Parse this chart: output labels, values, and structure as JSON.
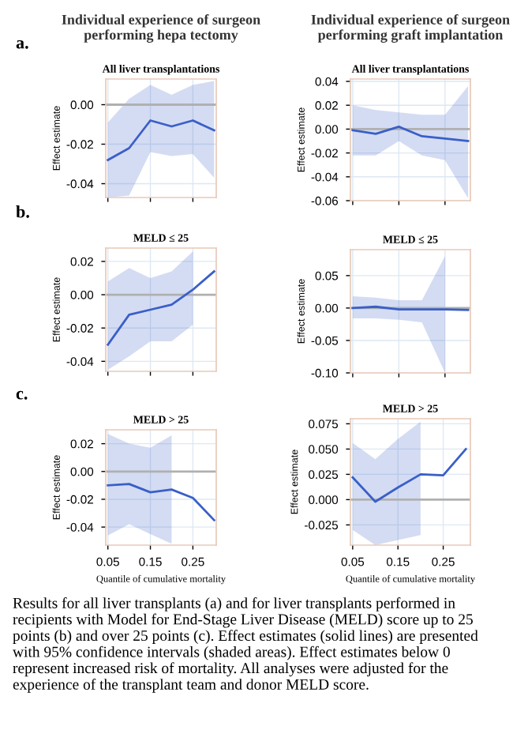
{
  "chart_data": [
    {
      "type": "line",
      "title": "All liver transplantations",
      "ylabel": "Effect estimate",
      "annotations": [
        "Individual experience of surgeon performing hepa tectomy",
        "a."
      ],
      "x": [
        0.05,
        0.1,
        0.15,
        0.2,
        0.25,
        0.3
      ],
      "xlim": [
        0.045,
        0.305
      ],
      "xticks": [
        0.05,
        0.15,
        0.25
      ],
      "ylim": [
        -0.047,
        0.013
      ],
      "yticks": [
        {
          "value": 0,
          "label": "0.00"
        },
        {
          "value": -0.02,
          "label": "-0.02"
        },
        {
          "value": -0.04,
          "label": "-0.04"
        }
      ],
      "tick_labels": "y",
      "grid": true,
      "ref_lines": [
        {
          "axis": "y",
          "value": 0,
          "color": "#b0b0b0"
        }
      ],
      "series": [
        {
          "color": "#3a5fc8",
          "values": [
            -0.028,
            -0.022,
            -0.008,
            -0.011,
            -0.008,
            -0.013
          ],
          "lower": [
            -0.047,
            -0.046,
            -0.024,
            -0.026,
            -0.025,
            -0.037
          ],
          "upper": [
            -0.009,
            0.003,
            0.01,
            0.005,
            0.01,
            0.012
          ]
        }
      ]
    },
    {
      "type": "line",
      "title": "All liver transplantations",
      "ylabel": "Effect estimate",
      "annotations": [
        "Individual experience of surgeon performing graft implantation"
      ],
      "x": [
        0.05,
        0.1,
        0.15,
        0.2,
        0.25,
        0.3
      ],
      "xlim": [
        0.045,
        0.305
      ],
      "xticks": [
        0.05,
        0.15,
        0.25
      ],
      "ylim": [
        -0.06,
        0.042
      ],
      "yticks": [
        {
          "value": 0.04,
          "label": "0.04"
        },
        {
          "value": 0.02,
          "label": "0.02"
        },
        {
          "value": 0,
          "label": "0.00"
        },
        {
          "value": -0.02,
          "label": "-0.02"
        },
        {
          "value": -0.04,
          "label": "-0.04"
        },
        {
          "value": -0.06,
          "label": "-0.06"
        }
      ],
      "tick_labels": "y",
      "grid": true,
      "ref_lines": [
        {
          "axis": "y",
          "value": 0,
          "color": "#b0b0b0"
        }
      ],
      "series": [
        {
          "color": "#3a5fc8",
          "values": [
            -0.001,
            -0.004,
            0.002,
            -0.006,
            -0.008,
            -0.01
          ],
          "lower": [
            -0.022,
            -0.022,
            -0.01,
            -0.022,
            -0.026,
            -0.058
          ],
          "upper": [
            0.02,
            0.016,
            0.014,
            0.012,
            0.012,
            0.036
          ]
        }
      ]
    },
    {
      "type": "line",
      "title": "MELD ≤ 25",
      "ylabel": "Effect estimate",
      "annotations": [
        "b."
      ],
      "x": [
        0.05,
        0.1,
        0.15,
        0.2,
        0.25,
        0.3
      ],
      "xlim": [
        0.045,
        0.305
      ],
      "xticks": [
        0.05,
        0.15,
        0.25
      ],
      "ylim": [
        -0.046,
        0.028
      ],
      "yticks": [
        {
          "value": 0.02,
          "label": "0.02"
        },
        {
          "value": 0,
          "label": "0.00"
        },
        {
          "value": -0.02,
          "label": "-0.02"
        },
        {
          "value": -0.04,
          "label": "-0.04"
        }
      ],
      "tick_labels": "y",
      "grid": true,
      "ref_lines": [
        {
          "axis": "y",
          "value": 0,
          "color": "#b0b0b0"
        }
      ],
      "series": [
        {
          "color": "#3a5fc8",
          "values": [
            -0.03,
            -0.012,
            -0.009,
            -0.006,
            0.003,
            0.014
          ],
          "lower": [
            -0.045,
            -0.037,
            -0.028,
            -0.028,
            -0.018,
            null
          ],
          "upper": [
            0.008,
            0.016,
            0.01,
            0.014,
            0.026,
            null
          ]
        }
      ]
    },
    {
      "type": "line",
      "title": "MELD ≤ 25",
      "ylabel": "Effect estimate",
      "x": [
        0.05,
        0.1,
        0.15,
        0.2,
        0.25,
        0.3
      ],
      "xlim": [
        0.045,
        0.305
      ],
      "xticks": [
        0.05,
        0.15,
        0.25
      ],
      "ylim": [
        -0.1,
        0.09
      ],
      "yticks": [
        {
          "value": 0.05,
          "label": "0.05"
        },
        {
          "value": 0,
          "label": "0.00"
        },
        {
          "value": -0.05,
          "label": "-0.05"
        },
        {
          "value": -0.1,
          "label": "-0.10"
        }
      ],
      "tick_labels": "y",
      "grid": true,
      "ref_lines": [
        {
          "axis": "y",
          "value": 0,
          "color": "#b0b0b0"
        }
      ],
      "series": [
        {
          "color": "#3a5fc8",
          "values": [
            0.0,
            0.002,
            -0.002,
            -0.002,
            -0.002,
            -0.003
          ],
          "lower": [
            -0.016,
            -0.016,
            -0.018,
            -0.022,
            -0.1,
            null
          ],
          "upper": [
            0.018,
            0.016,
            0.012,
            0.012,
            0.08,
            null
          ]
        }
      ]
    },
    {
      "type": "line",
      "title": "MELD > 25",
      "ylabel": "Effect estimate",
      "xlabel": "Quantile of cumulative mortality",
      "annotations": [
        "c."
      ],
      "x": [
        0.05,
        0.1,
        0.15,
        0.2,
        0.25,
        0.3
      ],
      "xlim": [
        0.045,
        0.305
      ],
      "xticks": [
        0.05,
        0.15,
        0.25
      ],
      "ylim": [
        -0.053,
        0.03
      ],
      "yticks": [
        {
          "value": 0.02,
          "label": "0.02"
        },
        {
          "value": 0,
          "label": "0.00"
        },
        {
          "value": -0.02,
          "label": "-0.02"
        },
        {
          "value": -0.04,
          "label": "-0.04"
        }
      ],
      "grid": true,
      "ref_lines": [
        {
          "axis": "y",
          "value": 0,
          "color": "#b0b0b0"
        }
      ],
      "series": [
        {
          "color": "#3a5fc8",
          "values": [
            -0.01,
            -0.009,
            -0.015,
            -0.013,
            -0.019,
            -0.035
          ],
          "lower": [
            -0.046,
            -0.038,
            -0.045,
            -0.052,
            null,
            null
          ],
          "upper": [
            0.027,
            0.02,
            0.017,
            0.026,
            null,
            null
          ]
        }
      ]
    },
    {
      "type": "line",
      "title": "MELD > 25",
      "ylabel": "Effect estimate",
      "xlabel": "Quantile of cumulative mortality",
      "annotations": [
        "Results for all liver transplants (a) and for liver transplants performed in recipients with Model for End-Stage Liver Disease (MELD) score up to 25 points (b) and over 25 points (c). Effect estimates (solid lines) are presented with 95% confidence intervals (shaded areas). Effect estimates below 0 represent increased risk of mortality. All analyses were adjusted for the experience of the transplant team and donor MELD score."
      ],
      "x": [
        0.05,
        0.1,
        0.15,
        0.2,
        0.25,
        0.3
      ],
      "xlim": [
        0.045,
        0.31
      ],
      "xticks": [
        0.05,
        0.15,
        0.25
      ],
      "ylim": [
        -0.045,
        0.08
      ],
      "yticks": [
        {
          "value": 0.075,
          "label": "0.075"
        },
        {
          "value": 0.05,
          "label": "0.050"
        },
        {
          "value": 0.025,
          "label": "0.025"
        },
        {
          "value": 0,
          "label": "0.000"
        },
        {
          "value": -0.025,
          "label": "-0.025"
        }
      ],
      "grid": true,
      "ref_lines": [
        {
          "axis": "y",
          "value": 0,
          "color": "#b0b0b0"
        }
      ],
      "series": [
        {
          "color": "#3a5fc8",
          "values": [
            0.022,
            -0.002,
            0.012,
            0.025,
            0.024,
            0.05
          ],
          "lower": [
            -0.03,
            -0.045,
            -0.04,
            -0.035,
            null,
            null
          ],
          "upper": [
            0.056,
            0.04,
            0.06,
            0.077,
            null,
            null
          ]
        }
      ]
    }
  ]
}
